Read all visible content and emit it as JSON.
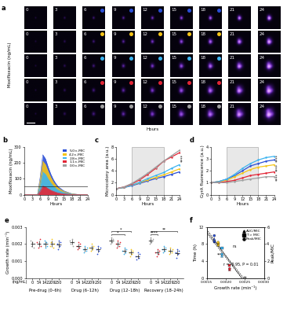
{
  "chart_data": [
    {
      "type": "image_grid",
      "panel": "a",
      "ylabel": "Moxifloxacin (ng/mL)",
      "xlabel": "Hours",
      "time_labels": [
        0,
        3,
        6,
        9,
        12,
        15,
        18,
        21,
        24
      ],
      "dosed_times": [
        6,
        9,
        12,
        15,
        18
      ],
      "row_colors": [
        "#2b4fd6",
        "#f5c518",
        "#3cb4f0",
        "#e32636",
        "#a0a0a0"
      ]
    },
    {
      "type": "area",
      "panel": "b",
      "xlabel": "Hours",
      "ylabel": "Moxifloxacin (ng/mL)",
      "x": [
        0,
        3,
        5,
        6,
        7,
        8,
        9,
        10,
        11,
        12,
        13,
        15,
        18,
        21,
        24
      ],
      "xlim": [
        0,
        24
      ],
      "xticks": [
        0,
        3,
        6,
        9,
        12,
        15,
        18,
        21,
        24
      ],
      "ylim": [
        0,
        300
      ],
      "yticks": [
        0,
        100,
        200,
        300
      ],
      "reference_line": 50,
      "legend": "upper right",
      "series": [
        {
          "name": "5.0×-MIC",
          "color": "#2b4fd6",
          "values": [
            0,
            0,
            0,
            110,
            250,
            225,
            175,
            130,
            95,
            68,
            48,
            24,
            6,
            0,
            0
          ]
        },
        {
          "name": "4.2×-MIC",
          "color": "#f5c518",
          "values": [
            0,
            0,
            0,
            92,
            209,
            188,
            146,
            109,
            79,
            57,
            40,
            20,
            5,
            0,
            0
          ]
        },
        {
          "name": "2.8×-MIC",
          "color": "#3cb4f0",
          "values": [
            0,
            0,
            0,
            62,
            142,
            128,
            99,
            74,
            54,
            39,
            27,
            14,
            3,
            0,
            0
          ]
        },
        {
          "name": "1.1×-MIC",
          "color": "#e32636",
          "values": [
            0,
            0,
            0,
            24,
            54,
            49,
            38,
            28,
            21,
            15,
            10,
            5,
            1,
            0,
            0
          ]
        },
        {
          "name": "0.0×-MIC",
          "color": "#a0a0a0",
          "values": [
            0,
            0,
            0,
            0,
            0,
            0,
            0,
            0,
            0,
            0,
            0,
            0,
            0,
            0,
            0
          ]
        }
      ]
    },
    {
      "type": "line",
      "panel": "c",
      "xlabel": "Hours",
      "ylabel": "Microcolony area (a.u.)",
      "x": [
        0,
        3,
        6,
        9,
        12,
        15,
        18,
        21,
        24
      ],
      "xlim": [
        0,
        24
      ],
      "xticks": [
        0,
        3,
        6,
        9,
        12,
        15,
        18,
        21,
        24
      ],
      "ylim": [
        0,
        8
      ],
      "yticks": [
        0,
        2,
        4,
        6,
        8
      ],
      "drug_window": [
        6,
        18
      ],
      "annotations": [
        "****"
      ],
      "series": [
        {
          "name": "5.0×-MIC",
          "color": "#2b4fd6",
          "values": [
            1,
            1.2,
            1.5,
            1.9,
            2.3,
            2.7,
            3.0,
            3.4,
            3.8
          ]
        },
        {
          "name": "4.2×-MIC",
          "color": "#f5c518",
          "values": [
            1,
            1.2,
            1.6,
            2.0,
            2.5,
            2.9,
            3.3,
            3.8,
            4.3
          ]
        },
        {
          "name": "2.8×-MIC",
          "color": "#3cb4f0",
          "values": [
            1,
            1.2,
            1.6,
            2.1,
            2.7,
            3.2,
            3.7,
            4.4,
            5.0
          ]
        },
        {
          "name": "1.1×-MIC",
          "color": "#e32636",
          "values": [
            1,
            1.3,
            1.8,
            2.5,
            3.4,
            4.4,
            5.6,
            6.3,
            7.0
          ]
        },
        {
          "name": "0.0×-MIC",
          "color": "#a0a0a0",
          "values": [
            1,
            1.3,
            1.9,
            2.7,
            3.6,
            4.6,
            5.6,
            6.5,
            7.4
          ]
        }
      ]
    },
    {
      "type": "line",
      "panel": "d",
      "xlabel": "Hours",
      "ylabel": "GyrA fluorescence (a.u.)",
      "x": [
        0,
        3,
        6,
        9,
        12,
        15,
        18,
        21,
        24
      ],
      "xlim": [
        0,
        24
      ],
      "xticks": [
        0,
        3,
        6,
        9,
        12,
        15,
        18,
        21,
        24
      ],
      "ylim": [
        0,
        4
      ],
      "yticks": [
        0,
        1,
        2,
        3,
        4
      ],
      "drug_window": [
        6,
        18
      ],
      "annotations": [
        "****",
        "****",
        "****"
      ],
      "series": [
        {
          "name": "5.0×-MIC",
          "color": "#2b4fd6",
          "values": [
            1,
            1.1,
            1.3,
            1.6,
            2.0,
            2.4,
            2.6,
            2.8,
            2.9
          ]
        },
        {
          "name": "4.2×-MIC",
          "color": "#f5c518",
          "values": [
            1,
            1.1,
            1.2,
            1.5,
            1.8,
            2.1,
            2.3,
            2.4,
            2.5
          ]
        },
        {
          "name": "2.8×-MIC",
          "color": "#3cb4f0",
          "values": [
            1,
            1.1,
            1.3,
            1.7,
            2.2,
            2.6,
            2.9,
            3.1,
            3.2
          ]
        },
        {
          "name": "1.1×-MIC",
          "color": "#e32636",
          "values": [
            1,
            1.0,
            1.1,
            1.2,
            1.4,
            1.6,
            1.7,
            1.8,
            1.9
          ]
        },
        {
          "name": "0.0×-MIC",
          "color": "#a0a0a0",
          "values": [
            1,
            1.0,
            1.0,
            1.1,
            1.2,
            1.3,
            1.4,
            1.5,
            1.5
          ]
        }
      ]
    },
    {
      "type": "scatter",
      "panel": "e",
      "ylabel": "Growth rate (min⁻¹)",
      "unit_label": "(ng/mL)",
      "categories": [
        "0",
        "54",
        "142",
        "209",
        "250"
      ],
      "colors": [
        "#a0a0a0",
        "#e32636",
        "#3cb4f0",
        "#f5c518",
        "#2b4fd6"
      ],
      "ylim": [
        0,
        0.003
      ],
      "yticks": [
        {
          "value": 0,
          "label": "0.000"
        },
        {
          "value": 0.001,
          "label": "0.001"
        },
        {
          "value": 0.002,
          "label": "0.002"
        },
        {
          "value": 0.003,
          "label": "0.003"
        }
      ],
      "groups": [
        {
          "name": "Pre-drug (0–6h)",
          "points": [
            [
              0.0022,
              0.0019,
              0.0021,
              0.0018,
              0.002
            ],
            [
              0.0021,
              0.0018,
              0.002,
              0.0023,
              0.0019
            ],
            [
              0.002,
              0.0022,
              0.0018,
              0.0021,
              0.0019
            ],
            [
              0.0019,
              0.0021,
              0.0023,
              0.0018,
              0.002
            ],
            [
              0.002,
              0.0017,
              0.0022,
              0.0019,
              0.0021
            ]
          ]
        },
        {
          "name": "Drug (6–12h)",
          "points": [
            [
              0.0022,
              0.002,
              0.0023,
              0.0019,
              0.0021
            ],
            [
              0.0019,
              0.0017,
              0.0021,
              0.0018,
              0.002
            ],
            [
              0.0017,
              0.0015,
              0.0019,
              0.0016,
              0.0018
            ],
            [
              0.0018,
              0.0016,
              0.002,
              0.0017,
              0.0019
            ],
            [
              0.0017,
              0.0014,
              0.0019,
              0.0016,
              0.0018
            ]
          ]
        },
        {
          "name": "Drug (12–18h)",
          "points": [
            [
              0.0022,
              0.002,
              0.0024,
              0.0021,
              0.0023
            ],
            [
              0.002,
              0.0018,
              0.0022,
              0.0019,
              0.0021
            ],
            [
              0.0016,
              0.0014,
              0.0018,
              0.0015,
              0.0017
            ],
            [
              0.0015,
              0.0013,
              0.0017,
              0.0014,
              0.0016
            ],
            [
              0.0013,
              0.0011,
              0.0015,
              0.0012,
              0.0014
            ]
          ]
        },
        {
          "name": "Recovery (18–24h)",
          "points": [
            [
              0.0022,
              0.002,
              0.0024,
              0.0021,
              0.0023
            ],
            [
              0.0015,
              0.0013,
              0.0017,
              0.0014,
              0.0016
            ],
            [
              0.0017,
              0.0015,
              0.0019,
              0.0016,
              0.0018
            ],
            [
              0.0016,
              0.0014,
              0.0018,
              0.0015,
              0.0017
            ],
            [
              0.0015,
              0.0012,
              0.0017,
              0.0014,
              0.0016
            ]
          ]
        }
      ],
      "brackets": [
        {
          "group": 2,
          "from": 0,
          "to": 2,
          "label": "*"
        },
        {
          "group": 2,
          "from": 0,
          "to": 3,
          "label": "*"
        },
        {
          "group": 3,
          "from": 0,
          "to": 1,
          "label": "****"
        },
        {
          "group": 3,
          "from": 0,
          "to": 4,
          "label": "**"
        }
      ]
    },
    {
      "type": "scatter",
      "panel": "f",
      "xlabel": "Growth rate (min⁻¹)",
      "ylabel": "Time (h)",
      "y2label": "Peak/MIC",
      "xlim": [
        0.0015,
        0.003
      ],
      "xticks": [
        {
          "value": 0.0015,
          "label": "0.0015"
        },
        {
          "value": 0.002,
          "label": "0.0020"
        },
        {
          "value": 0.0025,
          "label": "0.0025"
        },
        {
          "value": 0.003,
          "label": "0.0030"
        }
      ],
      "ylim": [
        0,
        12
      ],
      "yticks": [
        0,
        4,
        8,
        12
      ],
      "y2lim": [
        0,
        6
      ],
      "y2ticks": [
        0,
        2,
        4,
        6
      ],
      "legend": "upper right",
      "annotations": [
        "ns",
        "***",
        "r = -0.95, P = 0.01"
      ],
      "series": [
        {
          "name": "AUC/MIC",
          "marker": "triangle",
          "axis": "y2",
          "line_style": "dashed",
          "x": [
            0.0017,
            0.0018,
            0.0019,
            0.0021,
            0.0025
          ],
          "values": [
            4.6,
            3.9,
            2.6,
            1.0,
            0.0
          ],
          "colors": [
            "#2b4fd6",
            "#f5c518",
            "#3cb4f0",
            "#e32636",
            "#a0a0a0"
          ]
        },
        {
          "name": "T > MIC",
          "marker": "square",
          "line_style": "dashed",
          "x": [
            0.0017,
            0.0018,
            0.0019,
            0.0021,
            0.0025
          ],
          "values": [
            8.5,
            8.0,
            7.0,
            3.0,
            0.0
          ],
          "colors": [
            "#2b4fd6",
            "#f5c518",
            "#3cb4f0",
            "#e32636",
            "#a0a0a0"
          ]
        },
        {
          "name": "Peak/MIC",
          "marker": "circle",
          "axis": "y2",
          "line_style": "dashed",
          "x": [
            0.0017,
            0.0018,
            0.0019,
            0.0021,
            0.0025
          ],
          "values": [
            5.0,
            4.2,
            2.8,
            1.1,
            0.0
          ],
          "colors": [
            "#2b4fd6",
            "#f5c518",
            "#3cb4f0",
            "#e32636",
            "#a0a0a0"
          ]
        }
      ]
    }
  ]
}
